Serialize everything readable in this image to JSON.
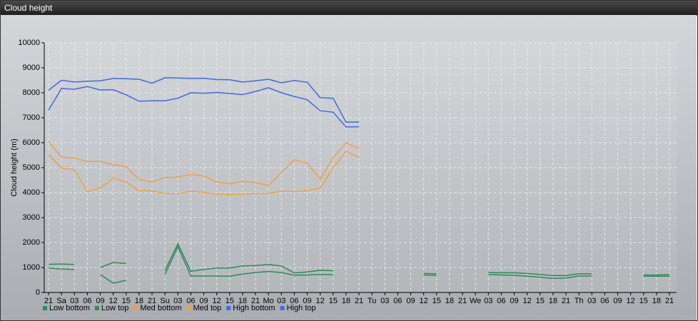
{
  "chart_data": {
    "type": "line",
    "title": "Cloud height",
    "ylabel": "Cloud height (m)",
    "categories": [
      "21",
      "Sa",
      "03",
      "06",
      "09",
      "12",
      "15",
      "18",
      "21",
      "Su",
      "03",
      "06",
      "09",
      "12",
      "15",
      "18",
      "21",
      "Mo",
      "03",
      "06",
      "09",
      "12",
      "15",
      "18",
      "21",
      "Tu",
      "03",
      "06",
      "09",
      "12",
      "15",
      "18",
      "21",
      "We",
      "03",
      "06",
      "09",
      "12",
      "15",
      "18",
      "21",
      "Th",
      "03",
      "06",
      "09",
      "12",
      "15",
      "18",
      "21"
    ],
    "ylim": [
      0,
      10000
    ],
    "yticks": [
      0,
      1000,
      2000,
      3000,
      4000,
      5000,
      6000,
      7000,
      8000,
      9000,
      10000
    ],
    "grid": true,
    "series": [
      {
        "name": "Low bottom",
        "color": "#2e8b57",
        "values": [
          980,
          940,
          920,
          null,
          720,
          370,
          490,
          null,
          null,
          720,
          1830,
          660,
          660,
          660,
          650,
          740,
          800,
          840,
          800,
          690,
          700,
          720,
          710,
          null,
          null,
          null,
          null,
          null,
          null,
          700,
          690,
          null,
          null,
          null,
          720,
          700,
          690,
          650,
          610,
          560,
          580,
          660,
          660,
          null,
          null,
          null,
          650,
          650,
          650
        ]
      },
      {
        "name": "Low top",
        "color": "#2e8b57",
        "values": [
          1130,
          1140,
          1120,
          null,
          1000,
          1200,
          1160,
          null,
          null,
          880,
          1950,
          850,
          920,
          980,
          980,
          1060,
          1080,
          1120,
          1060,
          780,
          820,
          890,
          870,
          null,
          null,
          null,
          null,
          null,
          null,
          760,
          750,
          null,
          null,
          null,
          800,
          790,
          790,
          760,
          720,
          680,
          680,
          750,
          750,
          null,
          null,
          null,
          700,
          700,
          710
        ]
      },
      {
        "name": "Med bottom",
        "color": "#f0a040",
        "values": [
          5530,
          4980,
          4920,
          4040,
          4180,
          4570,
          4420,
          4080,
          4060,
          3970,
          3950,
          4060,
          4010,
          3940,
          3930,
          3940,
          3960,
          3970,
          4060,
          4040,
          4080,
          4180,
          5000,
          5660,
          5400,
          null,
          null,
          null,
          null,
          null,
          null,
          null,
          null,
          null,
          null,
          null,
          null,
          null,
          null,
          null,
          null,
          null,
          null,
          null,
          null,
          null,
          null,
          null,
          null
        ]
      },
      {
        "name": "Med top",
        "color": "#f0a040",
        "values": [
          6050,
          5420,
          5380,
          5250,
          5250,
          5120,
          5030,
          4520,
          4430,
          4600,
          4620,
          4730,
          4660,
          4430,
          4350,
          4460,
          4400,
          4280,
          4800,
          5320,
          5170,
          4540,
          5400,
          6000,
          5760,
          null,
          null,
          null,
          null,
          null,
          null,
          null,
          null,
          null,
          null,
          null,
          null,
          null,
          null,
          null,
          null,
          null,
          null,
          null,
          null,
          null,
          null,
          null,
          null
        ]
      },
      {
        "name": "High bottom",
        "color": "#4169e1",
        "values": [
          7300,
          8170,
          8140,
          8250,
          8110,
          8120,
          7920,
          7660,
          7680,
          7680,
          7780,
          8000,
          7980,
          8010,
          7970,
          7930,
          8050,
          8200,
          8000,
          7850,
          7720,
          7280,
          7220,
          6630,
          6640,
          null,
          null,
          null,
          null,
          null,
          null,
          null,
          null,
          null,
          null,
          null,
          null,
          null,
          null,
          null,
          null,
          null,
          null,
          null,
          null,
          null,
          null,
          null,
          null
        ]
      },
      {
        "name": "High top",
        "color": "#4169e1",
        "values": [
          8100,
          8500,
          8430,
          8460,
          8480,
          8570,
          8560,
          8540,
          8380,
          8600,
          8590,
          8570,
          8580,
          8530,
          8520,
          8430,
          8480,
          8540,
          8400,
          8490,
          8420,
          7800,
          7780,
          6820,
          6830,
          null,
          null,
          null,
          null,
          null,
          null,
          null,
          null,
          null,
          null,
          null,
          null,
          null,
          null,
          null,
          null,
          null,
          null,
          null,
          null,
          null,
          null,
          null,
          null
        ]
      }
    ]
  }
}
